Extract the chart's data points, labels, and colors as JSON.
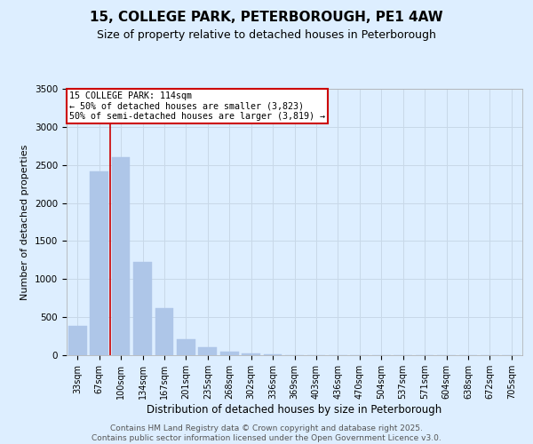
{
  "title": "15, COLLEGE PARK, PETERBOROUGH, PE1 4AW",
  "subtitle": "Size of property relative to detached houses in Peterborough",
  "xlabel": "Distribution of detached houses by size in Peterborough",
  "ylabel": "Number of detached properties",
  "categories": [
    "33sqm",
    "67sqm",
    "100sqm",
    "134sqm",
    "167sqm",
    "201sqm",
    "235sqm",
    "268sqm",
    "302sqm",
    "336sqm",
    "369sqm",
    "403sqm",
    "436sqm",
    "470sqm",
    "504sqm",
    "537sqm",
    "571sqm",
    "604sqm",
    "638sqm",
    "672sqm",
    "705sqm"
  ],
  "values": [
    390,
    2420,
    2600,
    1230,
    620,
    215,
    100,
    50,
    20,
    10,
    5,
    3,
    2,
    2,
    1,
    1,
    1,
    1,
    0,
    0,
    0
  ],
  "bar_color": "#aec6e8",
  "bar_edge_color": "#aec6e8",
  "red_line_x": 1.5,
  "annotation_title": "15 COLLEGE PARK: 114sqm",
  "annotation_line1": "← 50% of detached houses are smaller (3,823)",
  "annotation_line2": "50% of semi-detached houses are larger (3,819) →",
  "annotation_box_color": "#ffffff",
  "annotation_box_edge_color": "#cc0000",
  "red_line_color": "#cc0000",
  "ylim": [
    0,
    3500
  ],
  "yticks": [
    0,
    500,
    1000,
    1500,
    2000,
    2500,
    3000,
    3500
  ],
  "grid_color": "#c8d8e8",
  "background_color": "#ddeeff",
  "plot_bg_color": "#ddeeff",
  "footer_line1": "Contains HM Land Registry data © Crown copyright and database right 2025.",
  "footer_line2": "Contains public sector information licensed under the Open Government Licence v3.0.",
  "title_fontsize": 11,
  "subtitle_fontsize": 9,
  "xlabel_fontsize": 8.5,
  "ylabel_fontsize": 8,
  "tick_fontsize": 7.5,
  "footer_fontsize": 6.5
}
